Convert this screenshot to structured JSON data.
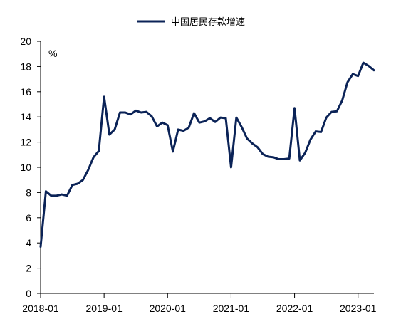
{
  "chart_data": {
    "type": "line",
    "title": "",
    "xlabel": "",
    "ylabel": "",
    "unit_label": "%",
    "ylim": [
      0,
      20
    ],
    "yticks": [
      "0",
      "2",
      "4",
      "6",
      "8",
      "10",
      "12",
      "14",
      "16",
      "18",
      "20"
    ],
    "xticks": [
      "2018-01",
      "2019-01",
      "2020-01",
      "2021-01",
      "2022-01",
      "2023-01"
    ],
    "x_start": "2018-01",
    "x_end": "2023-04",
    "grid": false,
    "legend_position": "top-center",
    "series": [
      {
        "name": "中国居民存款增速",
        "color": "#0b2357",
        "x": [
          "2018-01",
          "2018-02",
          "2018-03",
          "2018-04",
          "2018-05",
          "2018-06",
          "2018-07",
          "2018-08",
          "2018-09",
          "2018-10",
          "2018-11",
          "2018-12",
          "2019-01",
          "2019-02",
          "2019-03",
          "2019-04",
          "2019-05",
          "2019-06",
          "2019-07",
          "2019-08",
          "2019-09",
          "2019-10",
          "2019-11",
          "2019-12",
          "2020-01",
          "2020-02",
          "2020-03",
          "2020-04",
          "2020-05",
          "2020-06",
          "2020-07",
          "2020-08",
          "2020-09",
          "2020-10",
          "2020-11",
          "2020-12",
          "2021-01",
          "2021-02",
          "2021-03",
          "2021-04",
          "2021-05",
          "2021-06",
          "2021-07",
          "2021-08",
          "2021-09",
          "2021-10",
          "2021-11",
          "2021-12",
          "2022-01",
          "2022-02",
          "2022-03",
          "2022-04",
          "2022-05",
          "2022-06",
          "2022-07",
          "2022-08",
          "2022-09",
          "2022-10",
          "2022-11",
          "2022-12",
          "2023-01",
          "2023-02",
          "2023-03",
          "2023-04"
        ],
        "values": [
          3.7,
          8.1,
          7.75,
          7.75,
          7.85,
          7.75,
          8.6,
          8.7,
          9.0,
          9.8,
          10.8,
          11.3,
          15.6,
          12.6,
          13.0,
          14.35,
          14.35,
          14.2,
          14.5,
          14.35,
          14.4,
          14.05,
          13.25,
          13.55,
          13.35,
          11.25,
          13.0,
          12.9,
          13.15,
          14.3,
          13.55,
          13.65,
          13.9,
          13.6,
          13.95,
          13.9,
          10.0,
          13.95,
          13.2,
          12.3,
          11.9,
          11.6,
          11.05,
          10.85,
          10.8,
          10.65,
          10.65,
          10.7,
          14.7,
          10.55,
          11.15,
          12.2,
          12.85,
          12.8,
          13.95,
          14.4,
          14.45,
          15.3,
          16.75,
          17.4,
          17.25,
          18.3,
          18.05,
          17.7
        ]
      }
    ]
  }
}
